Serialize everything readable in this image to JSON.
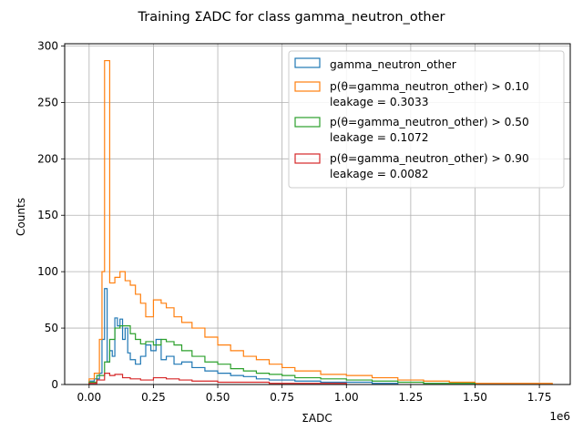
{
  "chart_data": {
    "type": "histogram",
    "title": "Training ΣADC for class gamma_neutron_other",
    "xlabel": "ΣADC",
    "ylabel": "Counts",
    "x_offset_label": "1e6",
    "xlim": [
      -0.095,
      1.87
    ],
    "ylim": [
      0,
      302
    ],
    "x_scale_multiplier": 1000000,
    "x_ticks": [
      0.0,
      0.25,
      0.5,
      0.75,
      1.0,
      1.25,
      1.5,
      1.75
    ],
    "x_tick_labels": [
      "0.00",
      "0.25",
      "0.50",
      "0.75",
      "1.00",
      "1.25",
      "1.50",
      "1.75"
    ],
    "y_ticks": [
      0,
      50,
      100,
      150,
      200,
      250,
      300
    ],
    "y_tick_labels": [
      "0",
      "50",
      "100",
      "150",
      "200",
      "250",
      "300"
    ],
    "grid": true,
    "legend_position": "top-right",
    "histtype": "step",
    "series": [
      {
        "name": "gamma_neutron_other",
        "color": "#1f77b4",
        "bin_edges": [
          0.0,
          0.02,
          0.04,
          0.05,
          0.06,
          0.07,
          0.08,
          0.09,
          0.1,
          0.11,
          0.12,
          0.13,
          0.14,
          0.15,
          0.16,
          0.18,
          0.2,
          0.22,
          0.24,
          0.26,
          0.28,
          0.3,
          0.33,
          0.36,
          0.4,
          0.45,
          0.5,
          0.55,
          0.6,
          0.65,
          0.7,
          0.8,
          0.9,
          1.0,
          1.1,
          1.2
        ],
        "counts": [
          3,
          5,
          10,
          40,
          85,
          20,
          30,
          25,
          59,
          52,
          58,
          40,
          50,
          28,
          22,
          18,
          25,
          35,
          30,
          40,
          22,
          25,
          18,
          20,
          15,
          12,
          10,
          8,
          7,
          5,
          4,
          3,
          2,
          2,
          1
        ]
      },
      {
        "name": "p(θ=gamma_neutron_other) > 0.10\nleakage = 0.3033",
        "color": "#ff7f0e",
        "bin_edges": [
          0.0,
          0.02,
          0.04,
          0.05,
          0.06,
          0.08,
          0.1,
          0.12,
          0.14,
          0.16,
          0.18,
          0.2,
          0.22,
          0.25,
          0.28,
          0.3,
          0.33,
          0.36,
          0.4,
          0.45,
          0.5,
          0.55,
          0.6,
          0.65,
          0.7,
          0.75,
          0.8,
          0.9,
          1.0,
          1.1,
          1.2,
          1.3,
          1.4,
          1.5,
          1.65,
          1.75,
          1.8
        ],
        "counts": [
          5,
          10,
          40,
          100,
          287,
          90,
          95,
          100,
          92,
          88,
          80,
          72,
          60,
          75,
          72,
          68,
          60,
          55,
          50,
          42,
          35,
          30,
          25,
          22,
          18,
          15,
          12,
          9,
          8,
          6,
          4,
          3,
          2,
          1,
          1,
          1
        ]
      },
      {
        "name": "p(θ=gamma_neutron_other) > 0.50\nleakage = 0.1072",
        "color": "#2ca02c",
        "bin_edges": [
          0.0,
          0.03,
          0.06,
          0.08,
          0.1,
          0.12,
          0.14,
          0.16,
          0.18,
          0.2,
          0.22,
          0.25,
          0.28,
          0.3,
          0.33,
          0.36,
          0.4,
          0.45,
          0.5,
          0.55,
          0.6,
          0.65,
          0.7,
          0.75,
          0.8,
          0.9,
          1.0,
          1.1,
          1.2,
          1.3,
          1.5
        ],
        "counts": [
          2,
          8,
          20,
          40,
          50,
          52,
          52,
          45,
          40,
          36,
          38,
          35,
          40,
          38,
          35,
          30,
          25,
          20,
          18,
          14,
          12,
          10,
          9,
          8,
          6,
          5,
          4,
          3,
          2,
          1
        ]
      },
      {
        "name": "p(θ=gamma_neutron_other) > 0.90\nleakage = 0.0082",
        "color": "#d62728",
        "bin_edges": [
          0.0,
          0.03,
          0.06,
          0.08,
          0.1,
          0.13,
          0.16,
          0.2,
          0.25,
          0.3,
          0.35,
          0.4,
          0.45,
          0.5,
          0.6,
          0.7,
          0.8,
          0.9,
          1.0
        ],
        "counts": [
          1,
          4,
          10,
          8,
          9,
          6,
          5,
          4,
          6,
          5,
          4,
          3,
          3,
          2,
          2,
          1,
          1,
          1
        ]
      }
    ]
  }
}
